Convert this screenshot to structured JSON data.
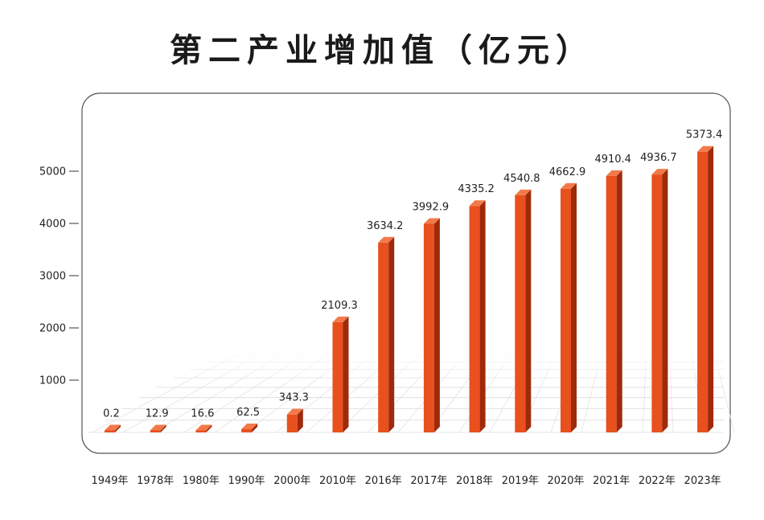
{
  "chart_data": {
    "type": "bar",
    "title": "第二产业增加值（亿元）",
    "categories": [
      "1949年",
      "1978年",
      "1980年",
      "1990年",
      "2000年",
      "2010年",
      "2016年",
      "2017年",
      "2018年",
      "2019年",
      "2020年",
      "2021年",
      "2022年",
      "2023年"
    ],
    "values": [
      0.2,
      12.9,
      16.6,
      62.5,
      343.3,
      2109.3,
      3634.2,
      3992.9,
      4335.2,
      4540.8,
      4662.9,
      4910.4,
      4936.7,
      5373.4
    ],
    "value_labels": [
      "0.2",
      "12.9",
      "16.6",
      "62.5",
      "343.3",
      "2109.3",
      "3634.2",
      "3992.9",
      "4335.2",
      "4540.8",
      "4662.9",
      "4910.4",
      "4936.7",
      "5373.4"
    ],
    "yticks": [
      1000,
      2000,
      3000,
      4000,
      5000
    ],
    "ylim": [
      0,
      5800
    ],
    "bar_color": "#e8501e",
    "bar_side_color": "#9e2a0b",
    "bar_top_color": "#f27a4a",
    "grid": true
  }
}
